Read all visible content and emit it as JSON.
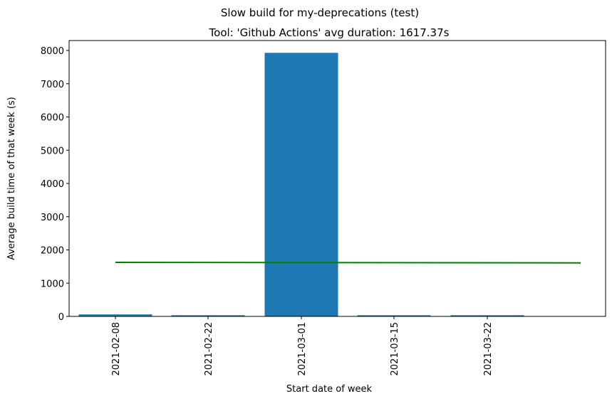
{
  "chart_data": {
    "type": "bar",
    "suptitle": "Slow build for my-deprecations (test)",
    "title": "Tool: 'Github Actions' avg duration: 1617.37s",
    "xlabel": "Start date of week",
    "ylabel": "Average build time of that week (s)",
    "categories": [
      "2021-02-08",
      "2021-02-22",
      "2021-03-01",
      "2021-03-15",
      "2021-03-22"
    ],
    "values": [
      60,
      35,
      7930,
      35,
      35
    ],
    "bar_color": "#1f77b4",
    "trend_line": {
      "color": "#008000",
      "start": 1625,
      "end": 1610
    },
    "ylim": [
      0,
      8300
    ],
    "yticks": [
      0,
      1000,
      2000,
      3000,
      4000,
      5000,
      6000,
      7000,
      8000
    ],
    "grid": false,
    "legend": "none"
  }
}
